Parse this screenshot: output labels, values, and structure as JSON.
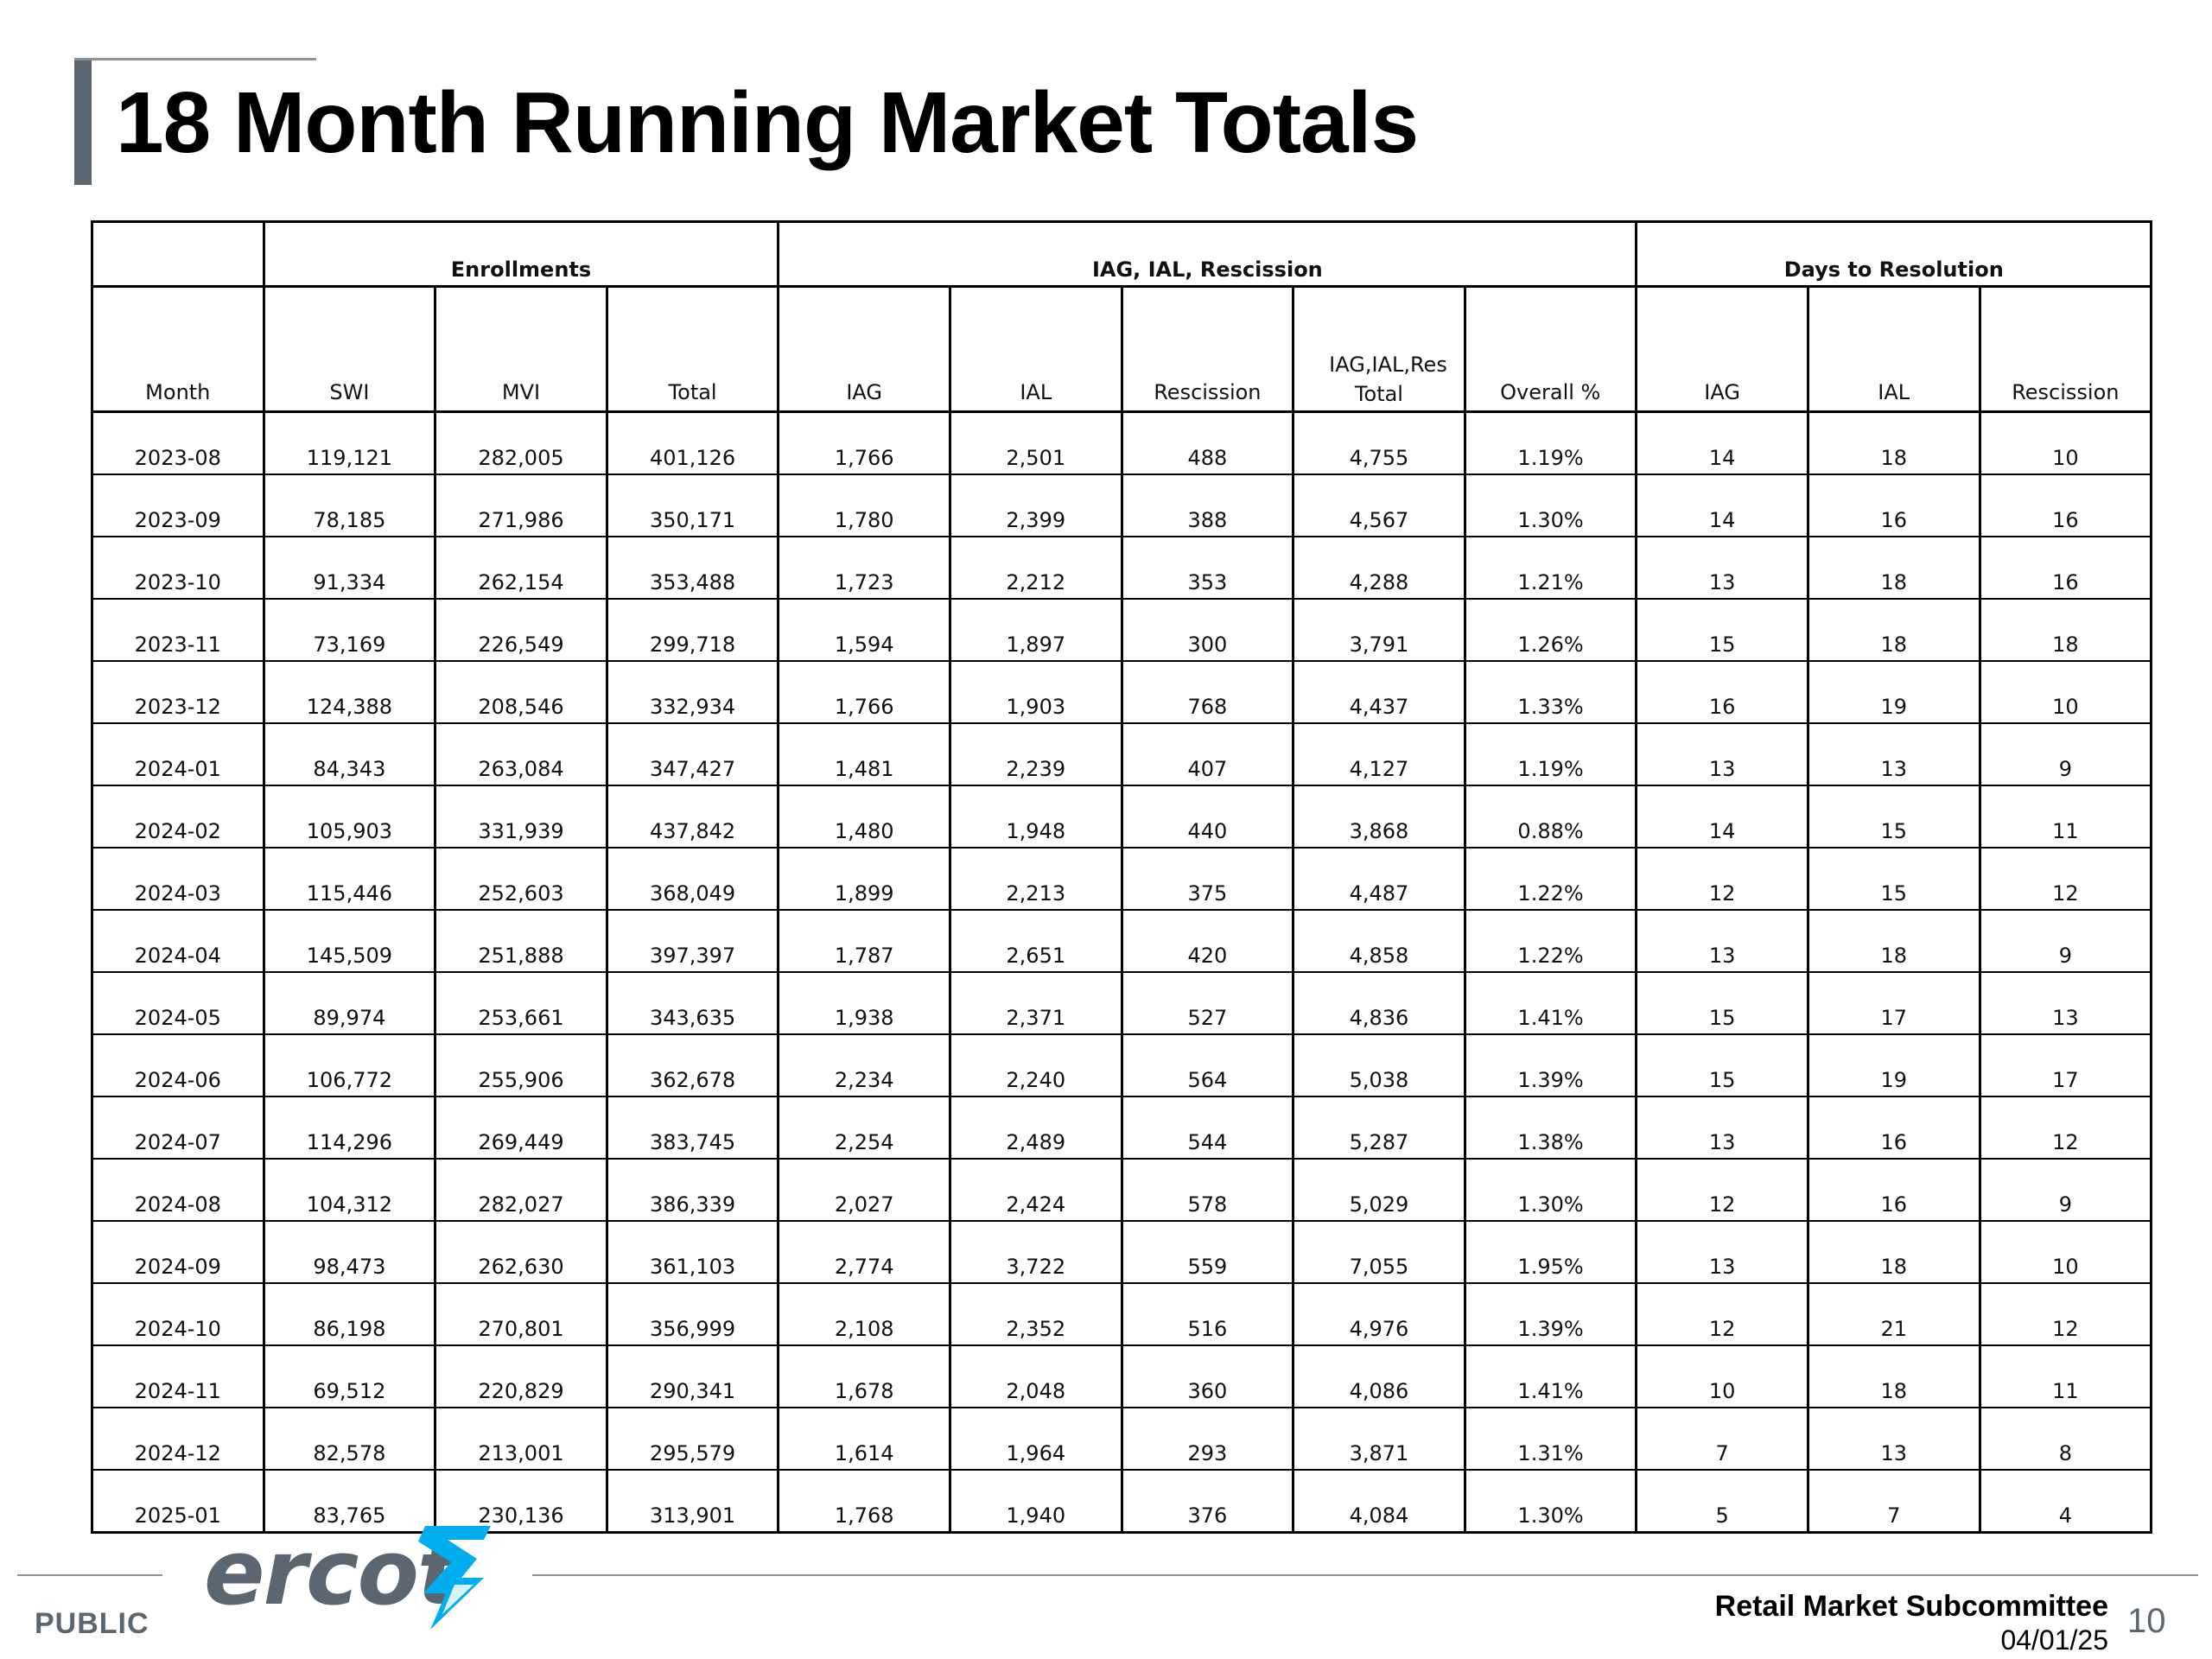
{
  "title": "18 Month Running Market Totals",
  "table": {
    "groups": [
      {
        "label": "",
        "span": 1
      },
      {
        "label": "Enrollments",
        "span": 3
      },
      {
        "label": "IAG, IAL, Rescission",
        "span": 5
      },
      {
        "label": "Days to Resolution",
        "span": 3
      }
    ],
    "headers": [
      "Month",
      "SWI",
      "MVI",
      "Total",
      "IAG",
      "IAL",
      "Rescission",
      "IAG,IAL,Res Total",
      "Overall %",
      "IAG",
      "IAL",
      "Rescission"
    ],
    "rows": [
      [
        "2023-08",
        "119,121",
        "282,005",
        "401,126",
        "1,766",
        "2,501",
        "488",
        "4,755",
        "1.19%",
        "14",
        "18",
        "10"
      ],
      [
        "2023-09",
        "78,185",
        "271,986",
        "350,171",
        "1,780",
        "2,399",
        "388",
        "4,567",
        "1.30%",
        "14",
        "16",
        "16"
      ],
      [
        "2023-10",
        "91,334",
        "262,154",
        "353,488",
        "1,723",
        "2,212",
        "353",
        "4,288",
        "1.21%",
        "13",
        "18",
        "16"
      ],
      [
        "2023-11",
        "73,169",
        "226,549",
        "299,718",
        "1,594",
        "1,897",
        "300",
        "3,791",
        "1.26%",
        "15",
        "18",
        "18"
      ],
      [
        "2023-12",
        "124,388",
        "208,546",
        "332,934",
        "1,766",
        "1,903",
        "768",
        "4,437",
        "1.33%",
        "16",
        "19",
        "10"
      ],
      [
        "2024-01",
        "84,343",
        "263,084",
        "347,427",
        "1,481",
        "2,239",
        "407",
        "4,127",
        "1.19%",
        "13",
        "13",
        "9"
      ],
      [
        "2024-02",
        "105,903",
        "331,939",
        "437,842",
        "1,480",
        "1,948",
        "440",
        "3,868",
        "0.88%",
        "14",
        "15",
        "11"
      ],
      [
        "2024-03",
        "115,446",
        "252,603",
        "368,049",
        "1,899",
        "2,213",
        "375",
        "4,487",
        "1.22%",
        "12",
        "15",
        "12"
      ],
      [
        "2024-04",
        "145,509",
        "251,888",
        "397,397",
        "1,787",
        "2,651",
        "420",
        "4,858",
        "1.22%",
        "13",
        "18",
        "9"
      ],
      [
        "2024-05",
        "89,974",
        "253,661",
        "343,635",
        "1,938",
        "2,371",
        "527",
        "4,836",
        "1.41%",
        "15",
        "17",
        "13"
      ],
      [
        "2024-06",
        "106,772",
        "255,906",
        "362,678",
        "2,234",
        "2,240",
        "564",
        "5,038",
        "1.39%",
        "15",
        "19",
        "17"
      ],
      [
        "2024-07",
        "114,296",
        "269,449",
        "383,745",
        "2,254",
        "2,489",
        "544",
        "5,287",
        "1.38%",
        "13",
        "16",
        "12"
      ],
      [
        "2024-08",
        "104,312",
        "282,027",
        "386,339",
        "2,027",
        "2,424",
        "578",
        "5,029",
        "1.30%",
        "12",
        "16",
        "9"
      ],
      [
        "2024-09",
        "98,473",
        "262,630",
        "361,103",
        "2,774",
        "3,722",
        "559",
        "7,055",
        "1.95%",
        "13",
        "18",
        "10"
      ],
      [
        "2024-10",
        "86,198",
        "270,801",
        "356,999",
        "2,108",
        "2,352",
        "516",
        "4,976",
        "1.39%",
        "12",
        "21",
        "12"
      ],
      [
        "2024-11",
        "69,512",
        "220,829",
        "290,341",
        "1,678",
        "2,048",
        "360",
        "4,086",
        "1.41%",
        "10",
        "18",
        "11"
      ],
      [
        "2024-12",
        "82,578",
        "213,001",
        "295,579",
        "1,614",
        "1,964",
        "293",
        "3,871",
        "1.31%",
        "7",
        "13",
        "8"
      ],
      [
        "2025-01",
        "83,765",
        "230,136",
        "313,901",
        "1,768",
        "1,940",
        "376",
        "4,084",
        "1.30%",
        "5",
        "7",
        "4"
      ]
    ]
  },
  "footer": {
    "classification": "PUBLIC",
    "logo_text": "ercot",
    "committee": "Retail Market Subcommittee",
    "date": "04/01/25",
    "page_number": "10"
  },
  "colors": {
    "accent_gray": "#5b6670",
    "logo_blue": "#00aeef",
    "rule_gray": "#8a949c"
  },
  "icons": {
    "logo_mark": "lightning-bolt-icon"
  }
}
